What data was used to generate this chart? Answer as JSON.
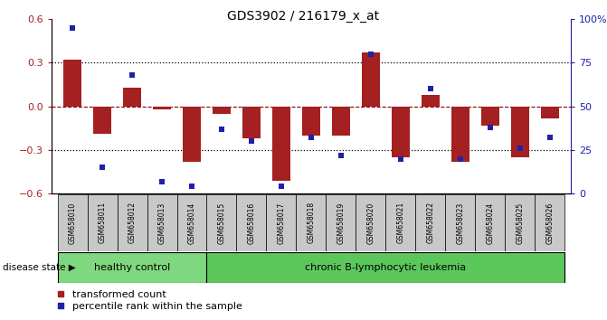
{
  "title": "GDS3902 / 216179_x_at",
  "samples": [
    "GSM658010",
    "GSM658011",
    "GSM658012",
    "GSM658013",
    "GSM658014",
    "GSM658015",
    "GSM658016",
    "GSM658017",
    "GSM658018",
    "GSM658019",
    "GSM658020",
    "GSM658021",
    "GSM658022",
    "GSM658023",
    "GSM658024",
    "GSM658025",
    "GSM658026"
  ],
  "transformed_count": [
    0.32,
    -0.19,
    0.13,
    -0.02,
    -0.38,
    -0.05,
    -0.22,
    -0.51,
    -0.2,
    -0.2,
    0.37,
    -0.35,
    0.08,
    -0.38,
    -0.13,
    -0.35,
    -0.08
  ],
  "percentile_rank": [
    95,
    15,
    68,
    7,
    4,
    37,
    30,
    4,
    32,
    22,
    80,
    20,
    60,
    20,
    38,
    26,
    32
  ],
  "healthy_control_count": 5,
  "bar_color": "#A52020",
  "dot_color": "#2020AA",
  "ylim_left": [
    -0.6,
    0.6
  ],
  "ylim_right": [
    0,
    100
  ],
  "yticks_left": [
    -0.6,
    -0.3,
    0.0,
    0.3,
    0.6
  ],
  "yticks_right": [
    0,
    25,
    50,
    75,
    100
  ],
  "ytick_labels_right": [
    "0",
    "25",
    "50",
    "75",
    "100%"
  ],
  "group_label_healthy": "healthy control",
  "group_label_leukemia": "chronic B-lymphocytic leukemia",
  "disease_state_label": "disease state",
  "legend_bar_label": "transformed count",
  "legend_dot_label": "percentile rank within the sample",
  "dotted_lines": [
    -0.3,
    0.3
  ],
  "bg_color": "#FFFFFF",
  "label_area_color": "#C8C8C8",
  "healthy_color": "#7FD87F",
  "leukemia_color": "#5CC85C",
  "bar_width": 0.6
}
